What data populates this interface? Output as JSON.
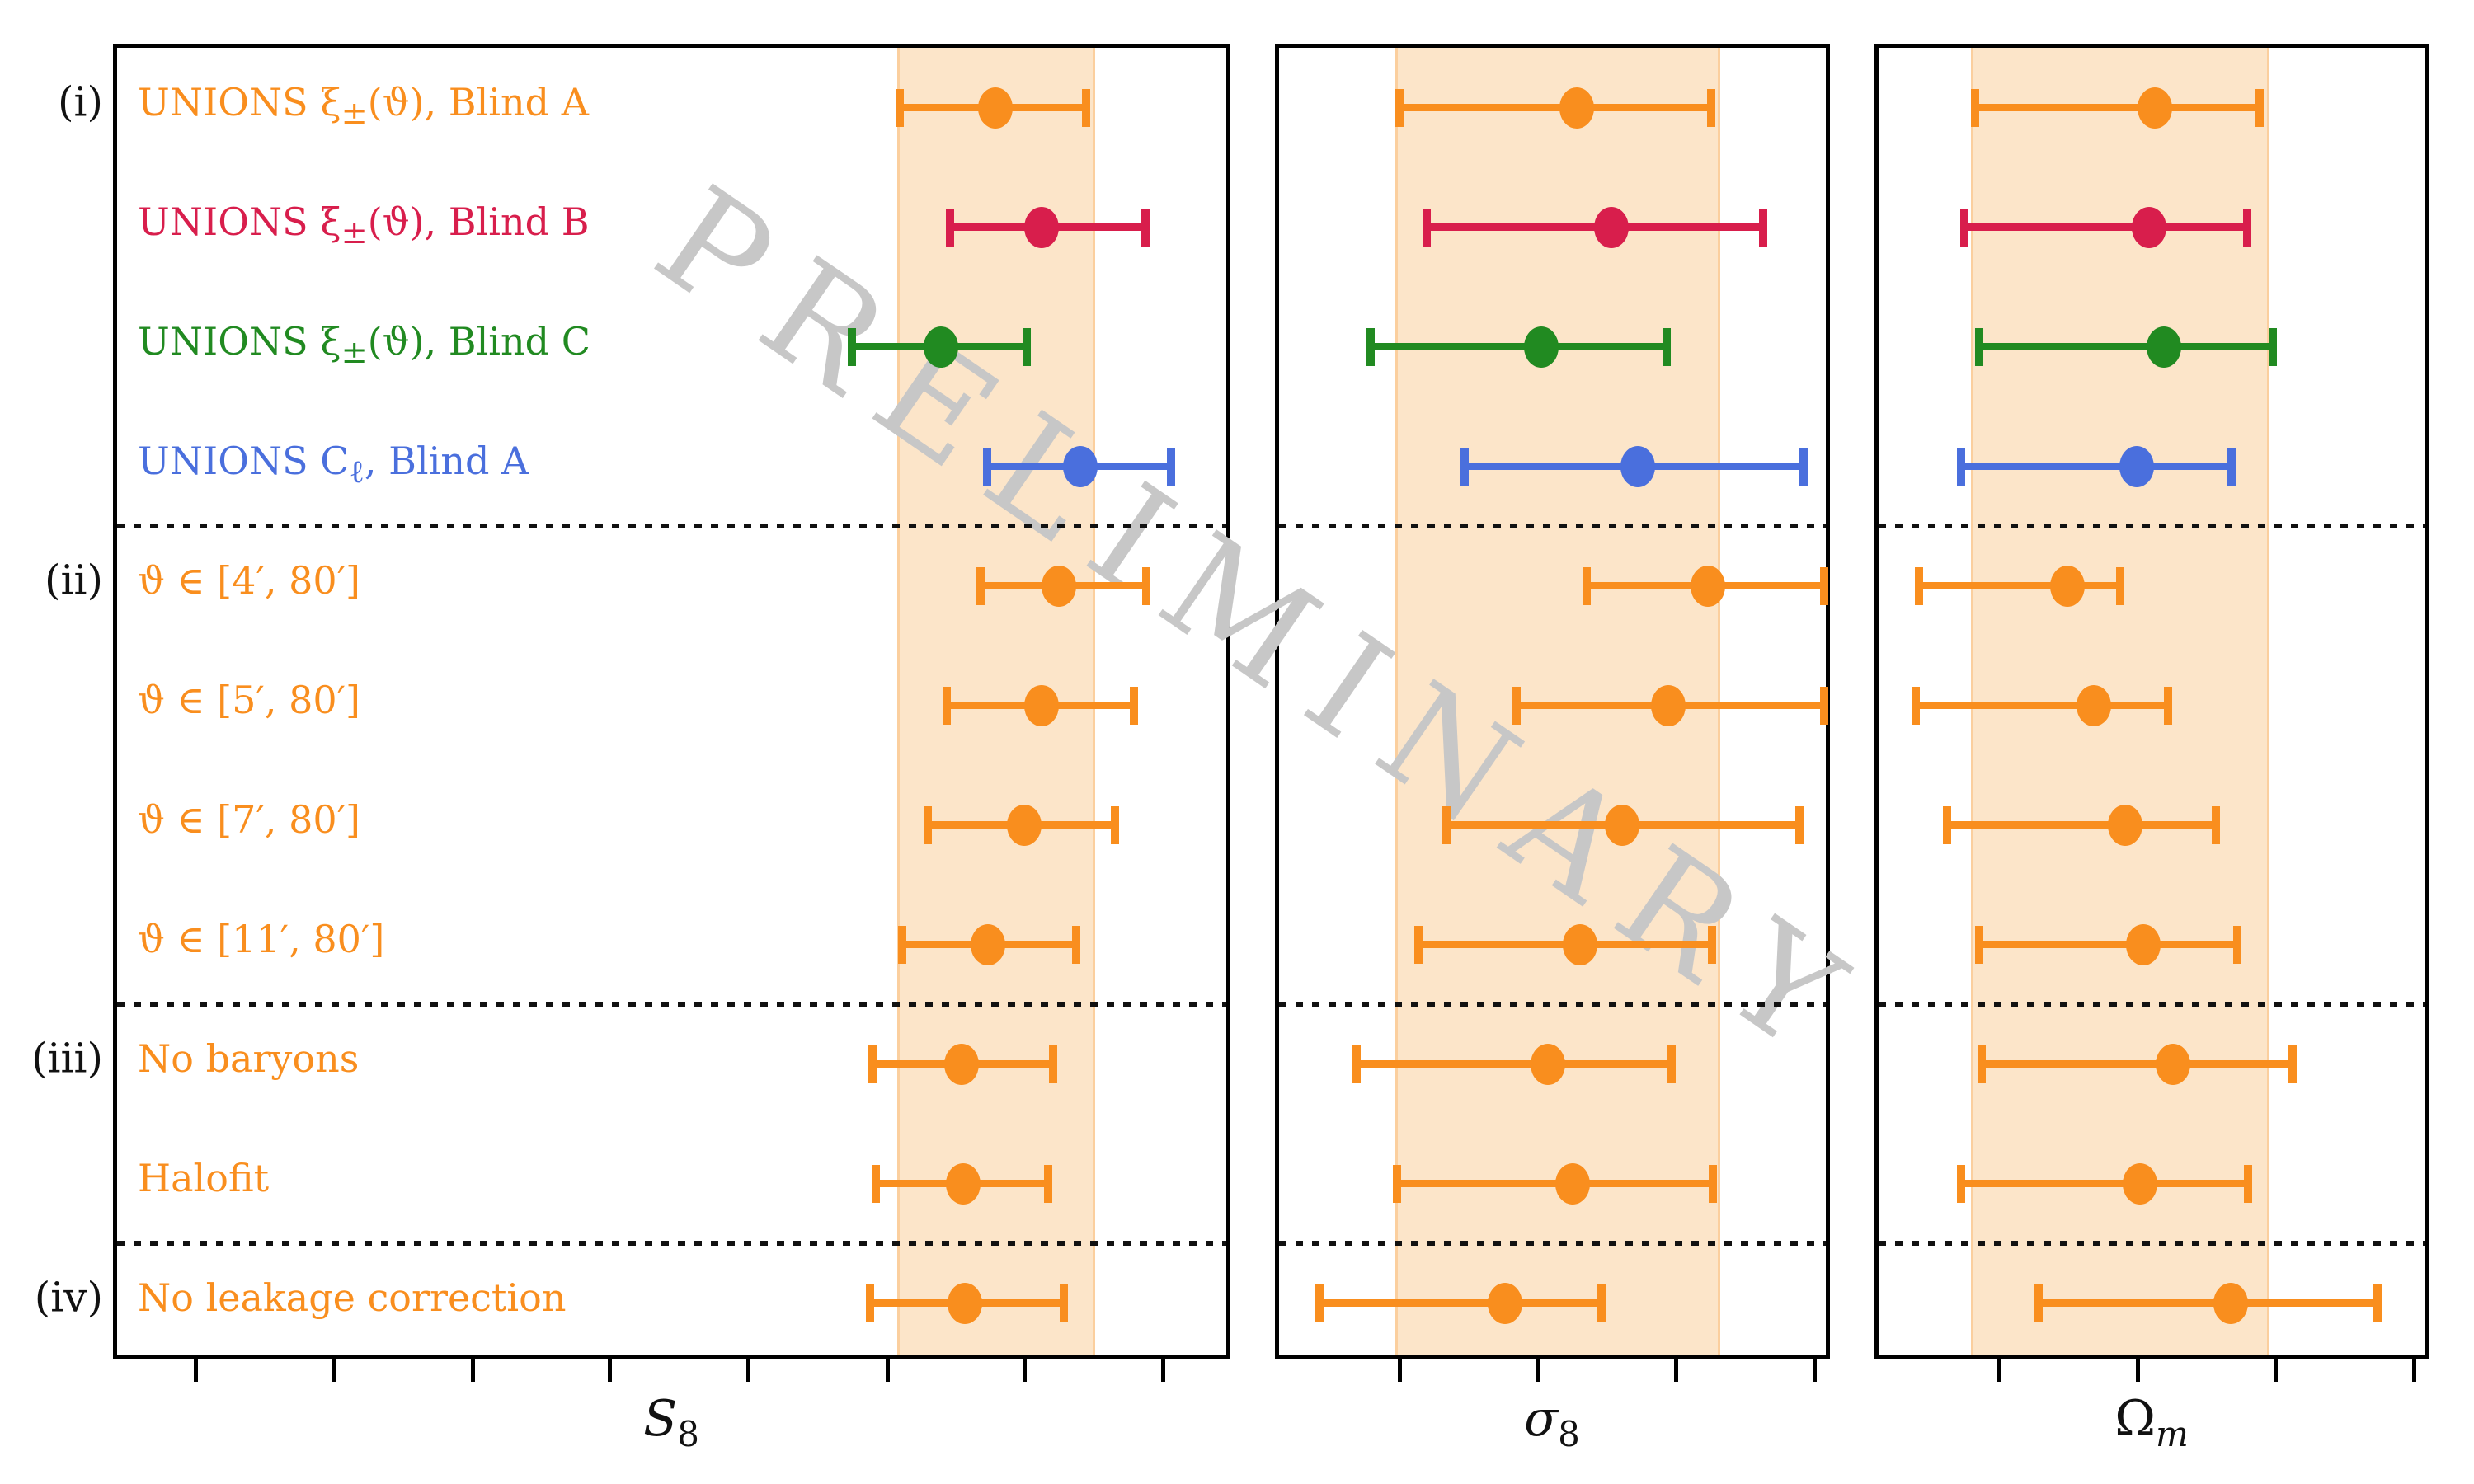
{
  "watermark": "PRELIMINARY",
  "chart_data": {
    "type": "scatter",
    "subtype": "horizontal-errorbar-forest-plot",
    "title": "",
    "note": "No numeric tick labels are visible; x positions are normalized per panel (0 = left spine, 1 = right spine). Shaded band = fiducial (Blind A) 1-sigma region.",
    "legend_position": "none",
    "grid": false,
    "rows": [
      {
        "label": "UNIONS ξ_{±}(ϑ), Blind A",
        "color_key": "orange"
      },
      {
        "label": "UNIONS ξ_{±}(ϑ), Blind B",
        "color_key": "crimson"
      },
      {
        "label": "UNIONS ξ_{±}(ϑ), Blind C",
        "color_key": "green"
      },
      {
        "label": "UNIONS C_{ℓ}, Blind A",
        "color_key": "blue"
      },
      {
        "label": "ϑ ∈ [4′, 80′]",
        "color_key": "orange"
      },
      {
        "label": "ϑ ∈ [5′, 80′]",
        "color_key": "orange"
      },
      {
        "label": "ϑ ∈ [7′, 80′]",
        "color_key": "orange"
      },
      {
        "label": "ϑ ∈ [11′, 80′]",
        "color_key": "orange"
      },
      {
        "label": "No baryons",
        "color_key": "orange"
      },
      {
        "label": "Halofit",
        "color_key": "orange"
      },
      {
        "label": "No leakage correction",
        "color_key": "orange"
      }
    ],
    "groups": [
      {
        "label": "(i)",
        "row_index": 0
      },
      {
        "label": "(ii)",
        "row_index": 4
      },
      {
        "label": "(iii)",
        "row_index": 8
      },
      {
        "label": "(iv)",
        "row_index": 10
      }
    ],
    "separators_after_rows": [
      3,
      7,
      9
    ],
    "colors": {
      "orange": "#f98e1e",
      "crimson": "#d81e4c",
      "green": "#218a21",
      "blue": "#4a6fdd",
      "band_fill": "#fce5c9",
      "axis": "#000000",
      "watermark": "#c7c7c7"
    },
    "panels": [
      {
        "xlabel": {
          "main": "S",
          "sub": "8",
          "main_italic": true,
          "sub_italic": false
        },
        "band": [
          0.698,
          0.871
        ],
        "ticks": [
          0.0745,
          0.198,
          0.322,
          0.445,
          0.569,
          0.693,
          0.816,
          0.94
        ],
        "bars": [
          {
            "lo": 0.697,
            "x": 0.786,
            "hi": 0.871
          },
          {
            "lo": 0.742,
            "x": 0.827,
            "hi": 0.924
          },
          {
            "lo": 0.654,
            "x": 0.737,
            "hi": 0.818
          },
          {
            "lo": 0.775,
            "x": 0.862,
            "hi": 0.947
          },
          {
            "lo": 0.769,
            "x": 0.843,
            "hi": 0.925
          },
          {
            "lo": 0.739,
            "x": 0.827,
            "hi": 0.914
          },
          {
            "lo": 0.722,
            "x": 0.812,
            "hi": 0.897
          },
          {
            "lo": 0.699,
            "x": 0.779,
            "hi": 0.862
          },
          {
            "lo": 0.672,
            "x": 0.756,
            "hi": 0.841
          },
          {
            "lo": 0.675,
            "x": 0.757,
            "hi": 0.837
          },
          {
            "lo": 0.67,
            "x": 0.759,
            "hi": 0.851
          }
        ]
      },
      {
        "xlabel": {
          "main": "σ",
          "sub": "8",
          "main_italic": true,
          "sub_italic": false
        },
        "band": [
          0.21,
          0.786
        ],
        "ticks": [
          0.225,
          0.474,
          0.723,
          0.972
        ],
        "bars": [
          {
            "lo": 0.21,
            "x": 0.536,
            "hi": 0.786
          },
          {
            "lo": 0.259,
            "x": 0.599,
            "hi": 0.88
          },
          {
            "lo": 0.158,
            "x": 0.473,
            "hi": 0.706
          },
          {
            "lo": 0.327,
            "x": 0.646,
            "hi": 0.952
          },
          {
            "lo": 0.547,
            "x": 0.773,
            "hi": 0.99
          },
          {
            "lo": 0.42,
            "x": 0.701,
            "hi": 0.99
          },
          {
            "lo": 0.294,
            "x": 0.618,
            "hi": 0.945
          },
          {
            "lo": 0.244,
            "x": 0.542,
            "hi": 0.787
          },
          {
            "lo": 0.132,
            "x": 0.484,
            "hi": 0.715
          },
          {
            "lo": 0.205,
            "x": 0.529,
            "hi": 0.789
          },
          {
            "lo": 0.065,
            "x": 0.407,
            "hi": 0.588
          }
        ]
      },
      {
        "xlabel": {
          "main": "Ω",
          "sub": "m",
          "main_italic": false,
          "sub_italic": true
        },
        "band": [
          0.166,
          0.695
        ],
        "ticks": [
          0.225,
          0.474,
          0.723,
          0.972
        ],
        "bars": [
          {
            "lo": 0.166,
            "x": 0.498,
            "hi": 0.694
          },
          {
            "lo": 0.147,
            "x": 0.487,
            "hi": 0.672
          },
          {
            "lo": 0.174,
            "x": 0.514,
            "hi": 0.718
          },
          {
            "lo": 0.141,
            "x": 0.465,
            "hi": 0.643
          },
          {
            "lo": 0.065,
            "x": 0.34,
            "hi": 0.443
          },
          {
            "lo": 0.059,
            "x": 0.388,
            "hi": 0.529
          },
          {
            "lo": 0.116,
            "x": 0.444,
            "hi": 0.615
          },
          {
            "lo": 0.174,
            "x": 0.477,
            "hi": 0.654
          },
          {
            "lo": 0.178,
            "x": 0.53,
            "hi": 0.753
          },
          {
            "lo": 0.141,
            "x": 0.471,
            "hi": 0.673
          },
          {
            "lo": 0.281,
            "x": 0.634,
            "hi": 0.906
          }
        ]
      }
    ]
  }
}
